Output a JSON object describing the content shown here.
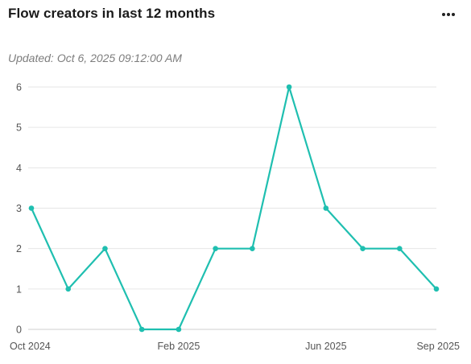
{
  "header": {
    "title": "Flow creators in last 12 months",
    "more_icon": "more-horizontal-icon",
    "updated_label": "Updated:",
    "updated_value": "Oct 6, 2025 09:12:00 AM"
  },
  "colors": {
    "line": "#1fbfb0",
    "grid": "#e6e6e6",
    "axis": "#cfcfcf"
  },
  "chart_data": {
    "type": "line",
    "title": "Flow creators in last 12 months",
    "xlabel": "",
    "ylabel": "",
    "x": [
      "2024-10",
      "2024-11",
      "2024-12",
      "2025-01",
      "2025-02",
      "2025-03",
      "2025-04",
      "2025-05",
      "2025-06",
      "2025-07",
      "2025-08",
      "2025-09"
    ],
    "x_tick_labels": [
      {
        "index": 0,
        "label": "Oct 2024"
      },
      {
        "index": 4,
        "label": "Feb 2025"
      },
      {
        "index": 8,
        "label": "Jun 2025"
      },
      {
        "index": 11,
        "label": "Sep 2025"
      }
    ],
    "series": [
      {
        "values": [
          3,
          1,
          2,
          0,
          0,
          2,
          2,
          6,
          3,
          2,
          2,
          1
        ]
      }
    ],
    "ylim": [
      0,
      6
    ],
    "y_ticks": [
      0,
      1,
      2,
      3,
      4,
      5,
      6
    ],
    "grid": true,
    "legend": "none"
  }
}
